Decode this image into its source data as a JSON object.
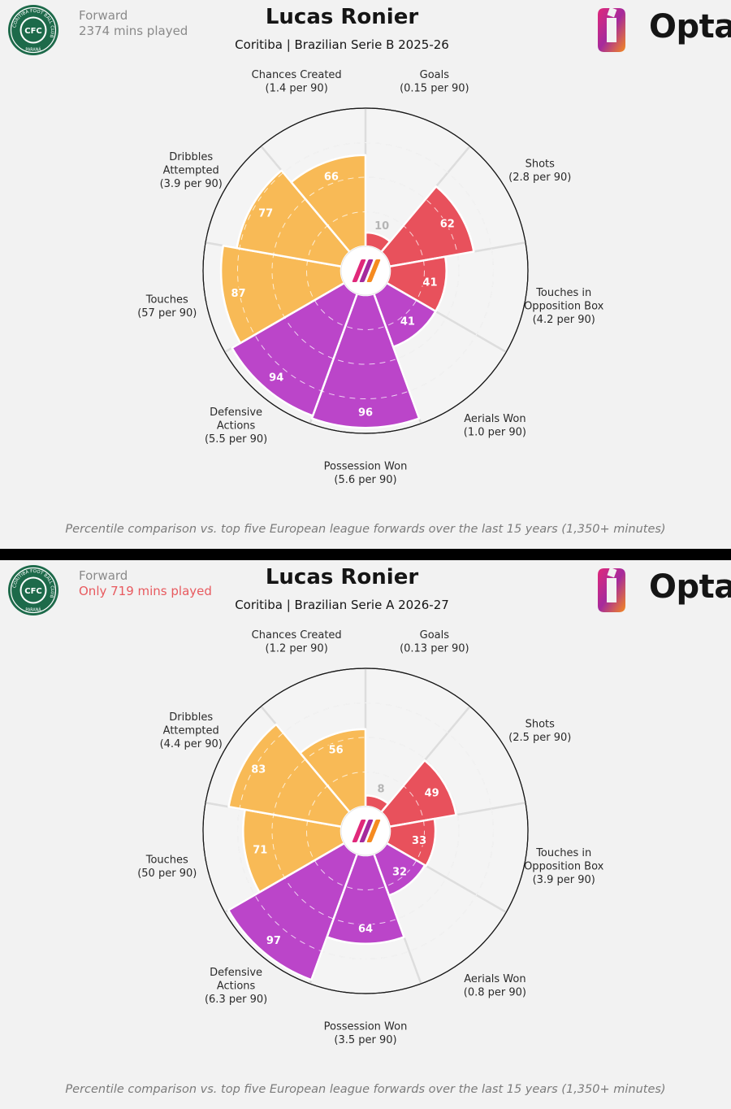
{
  "colors": {
    "attacking": "#e8515c",
    "possession": "#bb45c9",
    "defending": "#f8ba56",
    "low_value_text": "#b5b5b5",
    "warning": "#e85a5f",
    "grid": "#d9d9d9",
    "panel_bg": "#f2f2f2",
    "badge_green": "#1d6a4a"
  },
  "panels": [
    {
      "badge": {
        "initials": "CFC",
        "ring_text": "CORITIBA FOOT BALL CLUB",
        "region": "PARANÁ"
      },
      "position": "Forward",
      "minutes_text": "2374 mins played",
      "minutes_warning": false,
      "title": "Lucas Ronier",
      "subtitle": "Coritiba | Brazilian Serie B 2025-26",
      "brand": "Opta",
      "footnote": "Percentile comparison vs. top five European league forwards over the last 15 years (1,350+ minutes)",
      "chart_data": {
        "type": "radar-percentile",
        "range": [
          0,
          100
        ],
        "categories": [
          {
            "name_lines": [
              "Goals"
            ],
            "per90": "(0.15 per 90)",
            "value": 10,
            "group": "attacking"
          },
          {
            "name_lines": [
              "Shots"
            ],
            "per90": "(2.8 per 90)",
            "value": 62,
            "group": "attacking"
          },
          {
            "name_lines": [
              "Touches in",
              "Opposition Box"
            ],
            "per90": "(4.2 per 90)",
            "value": 41,
            "group": "attacking"
          },
          {
            "name_lines": [
              "Aerials Won"
            ],
            "per90": "(1.0 per 90)",
            "value": 41,
            "group": "possession"
          },
          {
            "name_lines": [
              "Possession Won"
            ],
            "per90": "(5.6 per 90)",
            "value": 96,
            "group": "possession"
          },
          {
            "name_lines": [
              "Defensive",
              "Actions"
            ],
            "per90": "(5.5 per 90)",
            "value": 94,
            "group": "possession"
          },
          {
            "name_lines": [
              "Touches"
            ],
            "per90": "(57 per 90)",
            "value": 87,
            "group": "defending"
          },
          {
            "name_lines": [
              "Dribbles",
              "Attempted"
            ],
            "per90": "(3.9 per 90)",
            "value": 77,
            "group": "defending"
          },
          {
            "name_lines": [
              "Chances Created"
            ],
            "per90": "(1.4 per 90)",
            "value": 66,
            "group": "defending"
          }
        ]
      }
    },
    {
      "badge": {
        "initials": "CFC",
        "ring_text": "CORITIBA FOOT BALL CLUB",
        "region": "PARANÁ"
      },
      "position": "Forward",
      "minutes_text": "Only 719 mins played",
      "minutes_warning": true,
      "title": "Lucas Ronier",
      "subtitle": "Coritiba | Brazilian Serie A 2026-27",
      "brand": "Opta",
      "footnote": "Percentile comparison vs. top five European league forwards over the last 15 years (1,350+ minutes)",
      "chart_data": {
        "type": "radar-percentile",
        "range": [
          0,
          100
        ],
        "categories": [
          {
            "name_lines": [
              "Goals"
            ],
            "per90": "(0.13 per 90)",
            "value": 8,
            "group": "attacking"
          },
          {
            "name_lines": [
              "Shots"
            ],
            "per90": "(2.5 per 90)",
            "value": 49,
            "group": "attacking"
          },
          {
            "name_lines": [
              "Touches in",
              "Opposition Box"
            ],
            "per90": "(3.9 per 90)",
            "value": 33,
            "group": "attacking"
          },
          {
            "name_lines": [
              "Aerials Won"
            ],
            "per90": "(0.8 per 90)",
            "value": 32,
            "group": "possession"
          },
          {
            "name_lines": [
              "Possession Won"
            ],
            "per90": "(3.5 per 90)",
            "value": 64,
            "group": "possession"
          },
          {
            "name_lines": [
              "Defensive",
              "Actions"
            ],
            "per90": "(6.3 per 90)",
            "value": 97,
            "group": "possession"
          },
          {
            "name_lines": [
              "Touches"
            ],
            "per90": "(50 per 90)",
            "value": 71,
            "group": "defending"
          },
          {
            "name_lines": [
              "Dribbles",
              "Attempted"
            ],
            "per90": "(4.4 per 90)",
            "value": 83,
            "group": "defending"
          },
          {
            "name_lines": [
              "Chances Created"
            ],
            "per90": "(1.2 per 90)",
            "value": 56,
            "group": "defending"
          }
        ]
      }
    }
  ]
}
